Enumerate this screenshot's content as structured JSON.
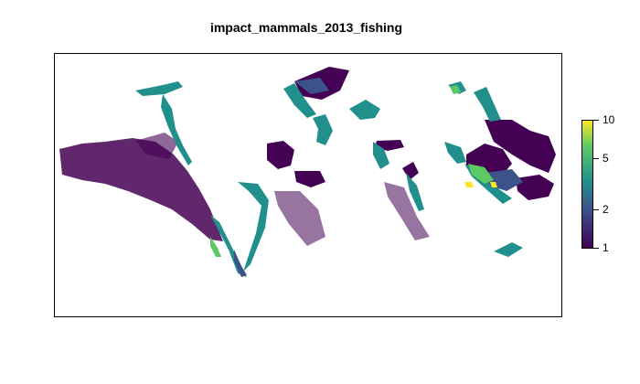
{
  "title": "impact_mammals_2013_fishing",
  "map": {
    "legend": {
      "scale": "log",
      "range": [
        1,
        10
      ],
      "ticks": [
        {
          "value": 10,
          "label": "10"
        },
        {
          "value": 5,
          "label": "5"
        },
        {
          "value": 2,
          "label": "2"
        },
        {
          "value": 1,
          "label": "1"
        }
      ],
      "colors": [
        "#440154",
        "#3b528b",
        "#21908d",
        "#5dc963",
        "#fde725"
      ]
    }
  }
}
